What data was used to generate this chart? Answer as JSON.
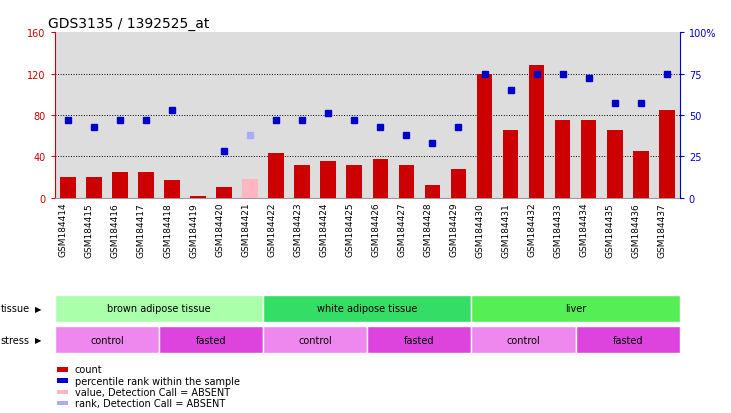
{
  "title": "GDS3135 / 1392525_at",
  "samples": [
    "GSM184414",
    "GSM184415",
    "GSM184416",
    "GSM184417",
    "GSM184418",
    "GSM184419",
    "GSM184420",
    "GSM184421",
    "GSM184422",
    "GSM184423",
    "GSM184424",
    "GSM184425",
    "GSM184426",
    "GSM184427",
    "GSM184428",
    "GSM184429",
    "GSM184430",
    "GSM184431",
    "GSM184432",
    "GSM184433",
    "GSM184434",
    "GSM184435",
    "GSM184436",
    "GSM184437"
  ],
  "bar_values": [
    20,
    20,
    25,
    25,
    17,
    2,
    10,
    18,
    43,
    32,
    35,
    32,
    37,
    32,
    12,
    28,
    120,
    65,
    128,
    75,
    75,
    65,
    45,
    85
  ],
  "bar_absent": [
    false,
    false,
    false,
    false,
    false,
    false,
    false,
    true,
    false,
    false,
    false,
    false,
    false,
    false,
    false,
    false,
    false,
    false,
    false,
    false,
    false,
    false,
    false,
    false
  ],
  "rank_values": [
    47,
    43,
    47,
    47,
    53,
    null,
    28,
    null,
    47,
    47,
    51,
    47,
    43,
    38,
    33,
    43,
    75,
    65,
    75,
    75,
    72,
    57,
    57,
    75
  ],
  "rank_absent_val": [
    null,
    null,
    null,
    null,
    null,
    null,
    null,
    38,
    null,
    null,
    null,
    null,
    null,
    null,
    null,
    null,
    null,
    null,
    null,
    null,
    null,
    null,
    null,
    null
  ],
  "ylim_left": [
    0,
    160
  ],
  "ylim_right": [
    0,
    100
  ],
  "yticks_left": [
    0,
    40,
    80,
    120,
    160
  ],
  "yticks_right": [
    0,
    25,
    50,
    75,
    100
  ],
  "ytick_labels_left": [
    "0",
    "40",
    "80",
    "120",
    "160"
  ],
  "ytick_labels_right": [
    "0",
    "25",
    "50",
    "75",
    "100%"
  ],
  "tissue_groups": [
    {
      "label": "brown adipose tissue",
      "start": 0,
      "end": 8,
      "color": "#AAFFAA"
    },
    {
      "label": "white adipose tissue",
      "start": 8,
      "end": 16,
      "color": "#33DD66"
    },
    {
      "label": "liver",
      "start": 16,
      "end": 24,
      "color": "#55EE55"
    }
  ],
  "stress_groups": [
    {
      "label": "control",
      "start": 0,
      "end": 4,
      "color": "#EE88EE"
    },
    {
      "label": "fasted",
      "start": 4,
      "end": 8,
      "color": "#DD44DD"
    },
    {
      "label": "control",
      "start": 8,
      "end": 12,
      "color": "#EE88EE"
    },
    {
      "label": "fasted",
      "start": 12,
      "end": 16,
      "color": "#DD44DD"
    },
    {
      "label": "control",
      "start": 16,
      "end": 20,
      "color": "#EE88EE"
    },
    {
      "label": "fasted",
      "start": 20,
      "end": 24,
      "color": "#DD44DD"
    }
  ],
  "bar_color": "#CC0000",
  "bar_absent_color": "#FFB6C1",
  "dot_color": "#0000CC",
  "dot_absent_color": "#AAAAFF",
  "bg_color": "#DDDDDD",
  "title_fontsize": 10,
  "tick_fontsize": 7,
  "label_fontsize": 7
}
